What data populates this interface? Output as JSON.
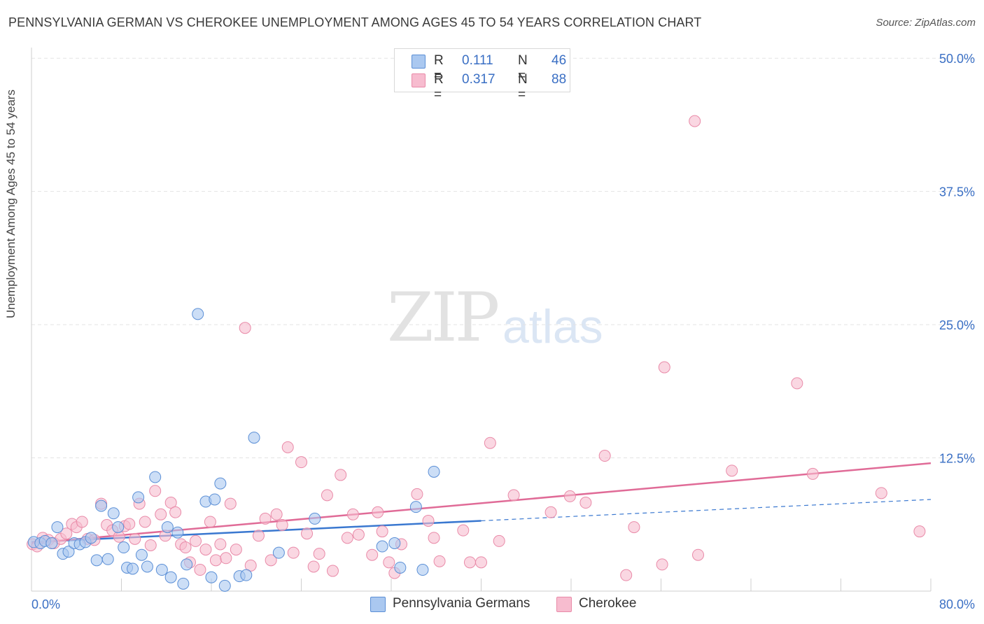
{
  "header": {
    "title": "PENNSYLVANIA GERMAN VS CHEROKEE UNEMPLOYMENT AMONG AGES 45 TO 54 YEARS CORRELATION CHART",
    "source": "Source: ZipAtlas.com"
  },
  "watermark": {
    "zip": "ZIP",
    "atlas": "atlas"
  },
  "stats": [
    {
      "r_label": "R =",
      "r_value": "0.111",
      "n_label": "N =",
      "n_value": "46",
      "color": "#aac8f0"
    },
    {
      "r_label": "R =",
      "r_value": "0.317",
      "n_label": "N =",
      "n_value": "88",
      "color": "#f7bccf"
    }
  ],
  "legend": [
    {
      "label": "Pennsylvania Germans",
      "color": "#aac8f0"
    },
    {
      "label": "Cherokee",
      "color": "#f7bccf"
    }
  ],
  "colors": {
    "blue_fill": "#aac8f0",
    "blue_stroke": "#5b8fd6",
    "blue_line": "#3a78d0",
    "pink_fill": "#f7bccf",
    "pink_stroke": "#e98aa8",
    "pink_line": "#e06b97",
    "tick_label": "#3a6fc4",
    "grid": "#e3e3e3"
  },
  "chart_data": {
    "type": "scatter",
    "title": "PENNSYLVANIA GERMAN VS CHEROKEE UNEMPLOYMENT AMONG AGES 45 TO 54 YEARS CORRELATION CHART",
    "ylabel": "Unemployment Among Ages 45 to 54 years",
    "xlabel": "",
    "xlim": [
      0,
      80
    ],
    "ylim": [
      0,
      51
    ],
    "x_tick_labels": [
      "0.0%",
      "80.0%"
    ],
    "y_ticks": [
      12.5,
      25,
      37.5,
      50
    ],
    "y_tick_labels": [
      "12.5%",
      "25.0%",
      "37.5%",
      "50.0%"
    ],
    "grid": true,
    "legend_position": "bottom",
    "series": [
      {
        "name": "Pennsylvania Germans",
        "points": [
          [
            0.2,
            4.6
          ],
          [
            0.8,
            4.5
          ],
          [
            1.2,
            4.7
          ],
          [
            1.8,
            4.5
          ],
          [
            2.3,
            6.0
          ],
          [
            2.8,
            3.5
          ],
          [
            3.3,
            3.7
          ],
          [
            3.8,
            4.5
          ],
          [
            4.3,
            4.4
          ],
          [
            4.8,
            4.6
          ],
          [
            5.3,
            5.0
          ],
          [
            5.8,
            2.9
          ],
          [
            6.2,
            8.0
          ],
          [
            6.8,
            3.0
          ],
          [
            7.3,
            7.3
          ],
          [
            7.7,
            6.0
          ],
          [
            8.2,
            4.1
          ],
          [
            8.5,
            2.2
          ],
          [
            9.0,
            2.1
          ],
          [
            9.5,
            8.8
          ],
          [
            9.8,
            3.4
          ],
          [
            10.3,
            2.3
          ],
          [
            11.0,
            10.7
          ],
          [
            11.6,
            2.0
          ],
          [
            12.1,
            6.0
          ],
          [
            12.4,
            1.3
          ],
          [
            13.0,
            5.5
          ],
          [
            13.5,
            0.7
          ],
          [
            13.8,
            2.5
          ],
          [
            14.8,
            26.0
          ],
          [
            15.5,
            8.4
          ],
          [
            16.0,
            1.3
          ],
          [
            16.3,
            8.6
          ],
          [
            16.8,
            10.1
          ],
          [
            17.2,
            0.5
          ],
          [
            18.5,
            1.4
          ],
          [
            19.1,
            1.5
          ],
          [
            19.8,
            14.4
          ],
          [
            22.0,
            3.6
          ],
          [
            25.2,
            6.8
          ],
          [
            31.2,
            4.2
          ],
          [
            32.3,
            4.5
          ],
          [
            32.8,
            2.2
          ],
          [
            34.2,
            7.9
          ],
          [
            34.8,
            2.0
          ],
          [
            35.8,
            11.2
          ]
        ],
        "trend": {
          "x": [
            0,
            40
          ],
          "y": [
            4.6,
            6.6
          ]
        },
        "trend_extension": {
          "x": [
            40,
            80
          ],
          "y": [
            6.6,
            8.6
          ]
        }
      },
      {
        "name": "Cherokee",
        "points": [
          [
            0.1,
            4.4
          ],
          [
            0.5,
            4.2
          ],
          [
            1.0,
            5.0
          ],
          [
            1.5,
            4.8
          ],
          [
            2.0,
            4.5
          ],
          [
            2.6,
            4.9
          ],
          [
            3.1,
            5.4
          ],
          [
            3.6,
            6.3
          ],
          [
            4.0,
            6.0
          ],
          [
            4.5,
            6.5
          ],
          [
            5.0,
            4.9
          ],
          [
            5.6,
            4.8
          ],
          [
            6.2,
            8.2
          ],
          [
            6.7,
            6.2
          ],
          [
            7.2,
            5.7
          ],
          [
            7.8,
            5.1
          ],
          [
            8.3,
            6.1
          ],
          [
            8.7,
            6.3
          ],
          [
            9.2,
            4.9
          ],
          [
            9.6,
            8.2
          ],
          [
            10.1,
            6.5
          ],
          [
            10.6,
            4.3
          ],
          [
            11.0,
            9.4
          ],
          [
            11.5,
            7.2
          ],
          [
            11.9,
            5.2
          ],
          [
            12.4,
            8.3
          ],
          [
            12.8,
            7.4
          ],
          [
            13.3,
            4.4
          ],
          [
            13.7,
            4.1
          ],
          [
            14.1,
            2.7
          ],
          [
            14.6,
            4.7
          ],
          [
            15.0,
            2.0
          ],
          [
            15.5,
            3.9
          ],
          [
            15.9,
            6.5
          ],
          [
            16.4,
            2.9
          ],
          [
            16.8,
            4.4
          ],
          [
            17.3,
            3.1
          ],
          [
            17.7,
            8.2
          ],
          [
            18.2,
            3.9
          ],
          [
            19.0,
            24.7
          ],
          [
            19.5,
            2.4
          ],
          [
            20.2,
            5.2
          ],
          [
            20.8,
            6.8
          ],
          [
            21.3,
            2.9
          ],
          [
            21.8,
            7.2
          ],
          [
            22.3,
            6.2
          ],
          [
            22.8,
            13.5
          ],
          [
            23.3,
            3.6
          ],
          [
            24.0,
            12.1
          ],
          [
            24.5,
            5.4
          ],
          [
            25.1,
            2.3
          ],
          [
            25.6,
            3.5
          ],
          [
            26.3,
            9.0
          ],
          [
            26.8,
            1.9
          ],
          [
            27.5,
            10.9
          ],
          [
            28.1,
            5.0
          ],
          [
            28.6,
            7.2
          ],
          [
            29.1,
            5.3
          ],
          [
            30.3,
            3.4
          ],
          [
            30.8,
            7.4
          ],
          [
            31.2,
            5.6
          ],
          [
            31.8,
            2.7
          ],
          [
            32.3,
            1.7
          ],
          [
            32.9,
            4.4
          ],
          [
            34.3,
            9.1
          ],
          [
            35.3,
            6.6
          ],
          [
            35.8,
            5.0
          ],
          [
            36.3,
            2.8
          ],
          [
            38.4,
            5.7
          ],
          [
            39.0,
            2.7
          ],
          [
            40.0,
            2.7
          ],
          [
            40.8,
            13.9
          ],
          [
            41.6,
            4.7
          ],
          [
            42.9,
            9.0
          ],
          [
            46.2,
            7.4
          ],
          [
            47.9,
            8.9
          ],
          [
            49.3,
            8.3
          ],
          [
            51.0,
            12.7
          ],
          [
            52.9,
            1.5
          ],
          [
            53.6,
            6.0
          ],
          [
            56.1,
            2.5
          ],
          [
            56.3,
            21.0
          ],
          [
            59.0,
            44.1
          ],
          [
            59.3,
            3.4
          ],
          [
            62.3,
            11.3
          ],
          [
            68.1,
            19.5
          ],
          [
            69.5,
            11.0
          ],
          [
            75.6,
            9.2
          ],
          [
            79.0,
            5.6
          ]
        ],
        "trend": {
          "x": [
            0,
            80
          ],
          "y": [
            4.5,
            12.0
          ]
        }
      }
    ]
  }
}
